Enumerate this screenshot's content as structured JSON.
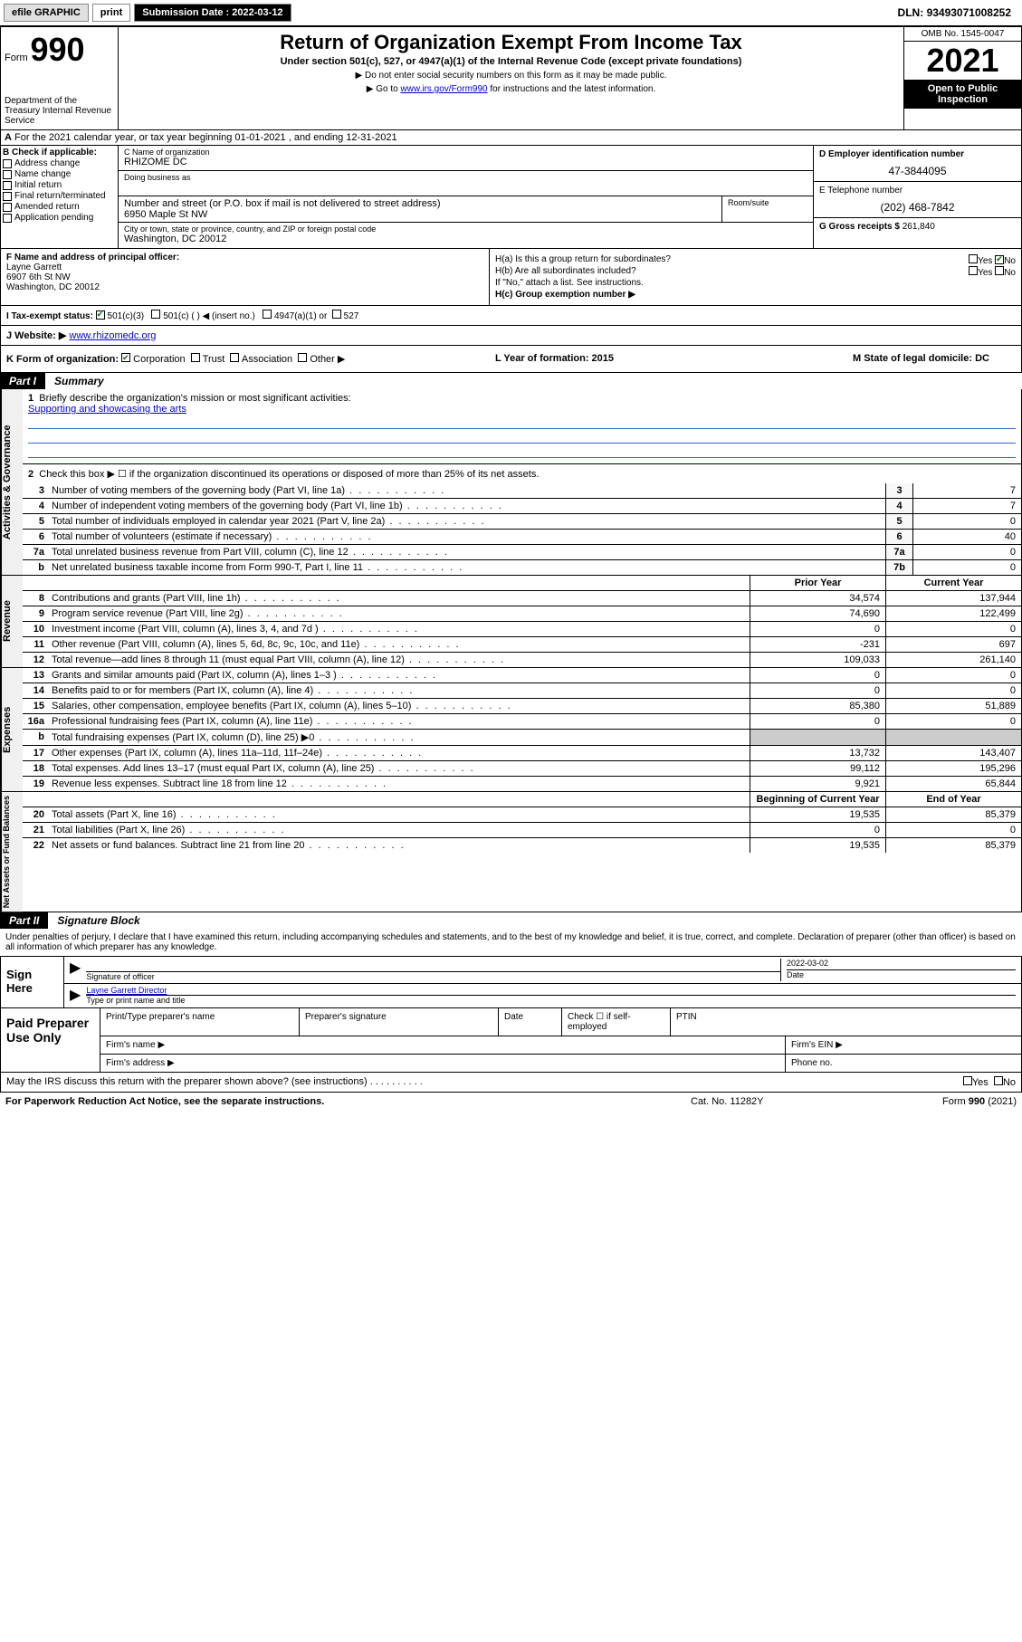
{
  "topbar": {
    "efile": "efile GRAPHIC",
    "print": "print",
    "sub_label": "Submission Date :",
    "sub_date": "2022-03-12",
    "dln_label": "DLN:",
    "dln": "93493071008252"
  },
  "header": {
    "form_label": "Form",
    "form_number": "990",
    "dept": "Department of the Treasury Internal Revenue Service",
    "title": "Return of Organization Exempt From Income Tax",
    "subtitle": "Under section 501(c), 527, or 4947(a)(1) of the Internal Revenue Code (except private foundations)",
    "instr1": "▶ Do not enter social security numbers on this form as it may be made public.",
    "instr2_pre": "▶ Go to ",
    "instr2_link": "www.irs.gov/Form990",
    "instr2_post": " for instructions and the latest information.",
    "omb": "OMB No. 1545-0047",
    "year": "2021",
    "open": "Open to Public Inspection"
  },
  "line_a": "For the 2021 calendar year, or tax year beginning 01-01-2021   , and ending 12-31-2021",
  "boxB": {
    "label": "B Check if applicable:",
    "items": [
      "Address change",
      "Name change",
      "Initial return",
      "Final return/terminated",
      "Amended return",
      "Application pending"
    ]
  },
  "boxC": {
    "name_lbl": "C Name of organization",
    "name": "RHIZOME DC",
    "dba_lbl": "Doing business as",
    "dba": "",
    "addr_lbl": "Number and street (or P.O. box if mail is not delivered to street address)",
    "room_lbl": "Room/suite",
    "addr": "6950 Maple St NW",
    "city_lbl": "City or town, state or province, country, and ZIP or foreign postal code",
    "city": "Washington, DC  20012"
  },
  "boxD": {
    "lbl": "D Employer identification number",
    "val": "47-3844095"
  },
  "boxE": {
    "lbl": "E Telephone number",
    "val": "(202) 468-7842"
  },
  "boxG": {
    "lbl": "G Gross receipts $",
    "val": "261,840"
  },
  "boxF": {
    "lbl": "F Name and address of principal officer:",
    "name": "Layne Garrett",
    "addr1": "6907 6th St NW",
    "addr2": "Washington, DC  20012"
  },
  "boxH": {
    "a": "H(a)  Is this a group return for subordinates?",
    "a_yes": "Yes",
    "a_no": "No",
    "b": "H(b)  Are all subordinates included?",
    "b_yes": "Yes",
    "b_no": "No",
    "b_note": "If \"No,\" attach a list. See instructions.",
    "c": "H(c)  Group exemption number ▶"
  },
  "rowI": {
    "lbl": "I   Tax-exempt status:",
    "o1": "501(c)(3)",
    "o2": "501(c) (  ) ◀ (insert no.)",
    "o3": "4947(a)(1) or",
    "o4": "527"
  },
  "rowJ": {
    "lbl": "J   Website: ▶",
    "val": "www.rhizomedc.org"
  },
  "rowK": {
    "lbl": "K Form of organization:",
    "o1": "Corporation",
    "o2": "Trust",
    "o3": "Association",
    "o4": "Other ▶",
    "l": "L Year of formation: 2015",
    "m": "M State of legal domicile: DC"
  },
  "part1": {
    "num": "Part I",
    "title": "Summary"
  },
  "summary": {
    "q1": "Briefly describe the organization's mission or most significant activities:",
    "q1_ans": "Supporting and showcasing the arts",
    "q2": "Check this box ▶ ☐  if the organization discontinued its operations or disposed of more than 25% of its net assets.",
    "rows_single": [
      {
        "n": "3",
        "t": "Number of voting members of the governing body (Part VI, line 1a)",
        "box": "3",
        "v": "7"
      },
      {
        "n": "4",
        "t": "Number of independent voting members of the governing body (Part VI, line 1b)",
        "box": "4",
        "v": "7"
      },
      {
        "n": "5",
        "t": "Total number of individuals employed in calendar year 2021 (Part V, line 2a)",
        "box": "5",
        "v": "0"
      },
      {
        "n": "6",
        "t": "Total number of volunteers (estimate if necessary)",
        "box": "6",
        "v": "40"
      },
      {
        "n": "7a",
        "t": "Total unrelated business revenue from Part VIII, column (C), line 12",
        "box": "7a",
        "v": "0"
      },
      {
        "n": "b",
        "t": "Net unrelated business taxable income from Form 990-T, Part I, line 11",
        "box": "7b",
        "v": "0"
      }
    ],
    "hdr_prior": "Prior Year",
    "hdr_current": "Current Year",
    "revenue": [
      {
        "n": "8",
        "t": "Contributions and grants (Part VIII, line 1h)",
        "v1": "34,574",
        "v2": "137,944"
      },
      {
        "n": "9",
        "t": "Program service revenue (Part VIII, line 2g)",
        "v1": "74,690",
        "v2": "122,499"
      },
      {
        "n": "10",
        "t": "Investment income (Part VIII, column (A), lines 3, 4, and 7d )",
        "v1": "0",
        "v2": "0"
      },
      {
        "n": "11",
        "t": "Other revenue (Part VIII, column (A), lines 5, 6d, 8c, 9c, 10c, and 11e)",
        "v1": "-231",
        "v2": "697"
      },
      {
        "n": "12",
        "t": "Total revenue—add lines 8 through 11 (must equal Part VIII, column (A), line 12)",
        "v1": "109,033",
        "v2": "261,140"
      }
    ],
    "expenses": [
      {
        "n": "13",
        "t": "Grants and similar amounts paid (Part IX, column (A), lines 1–3 )",
        "v1": "0",
        "v2": "0"
      },
      {
        "n": "14",
        "t": "Benefits paid to or for members (Part IX, column (A), line 4)",
        "v1": "0",
        "v2": "0"
      },
      {
        "n": "15",
        "t": "Salaries, other compensation, employee benefits (Part IX, column (A), lines 5–10)",
        "v1": "85,380",
        "v2": "51,889"
      },
      {
        "n": "16a",
        "t": "Professional fundraising fees (Part IX, column (A), line 11e)",
        "v1": "0",
        "v2": "0"
      },
      {
        "n": "b",
        "t": "Total fundraising expenses (Part IX, column (D), line 25) ▶0",
        "v1": "",
        "v2": "",
        "shaded": true
      },
      {
        "n": "17",
        "t": "Other expenses (Part IX, column (A), lines 11a–11d, 11f–24e)",
        "v1": "13,732",
        "v2": "143,407"
      },
      {
        "n": "18",
        "t": "Total expenses. Add lines 13–17 (must equal Part IX, column (A), line 25)",
        "v1": "99,112",
        "v2": "195,296"
      },
      {
        "n": "19",
        "t": "Revenue less expenses. Subtract line 18 from line 12",
        "v1": "9,921",
        "v2": "65,844"
      }
    ],
    "hdr_begin": "Beginning of Current Year",
    "hdr_end": "End of Year",
    "netassets": [
      {
        "n": "20",
        "t": "Total assets (Part X, line 16)",
        "v1": "19,535",
        "v2": "85,379"
      },
      {
        "n": "21",
        "t": "Total liabilities (Part X, line 26)",
        "v1": "0",
        "v2": "0"
      },
      {
        "n": "22",
        "t": "Net assets or fund balances. Subtract line 21 from line 20",
        "v1": "19,535",
        "v2": "85,379"
      }
    ]
  },
  "sidebar": {
    "s1": "Activities & Governance",
    "s2": "Revenue",
    "s3": "Expenses",
    "s4": "Net Assets or Fund Balances"
  },
  "part2": {
    "num": "Part II",
    "title": "Signature Block"
  },
  "sig": {
    "decl": "Under penalties of perjury, I declare that I have examined this return, including accompanying schedules and statements, and to the best of my knowledge and belief, it is true, correct, and complete. Declaration of preparer (other than officer) is based on all information of which preparer has any knowledge.",
    "sign_here": "Sign Here",
    "sig_officer": "Signature of officer",
    "date": "Date",
    "date_val": "2022-03-02",
    "name_title": "Layne Garrett Director",
    "name_title_lbl": "Type or print name and title"
  },
  "paid": {
    "title": "Paid Preparer Use Only",
    "h1": "Print/Type preparer's name",
    "h2": "Preparer's signature",
    "h3": "Date",
    "h4_chk": "Check ☐ if self-employed",
    "h5": "PTIN",
    "firm_name": "Firm's name   ▶",
    "firm_ein": "Firm's EIN ▶",
    "firm_addr": "Firm's address ▶",
    "phone": "Phone no."
  },
  "footer": {
    "may": "May the IRS discuss this return with the preparer shown above? (see instructions)",
    "yes": "Yes",
    "no": "No",
    "pra": "For Paperwork Reduction Act Notice, see the separate instructions.",
    "cat": "Cat. No. 11282Y",
    "form": "Form 990 (2021)"
  }
}
